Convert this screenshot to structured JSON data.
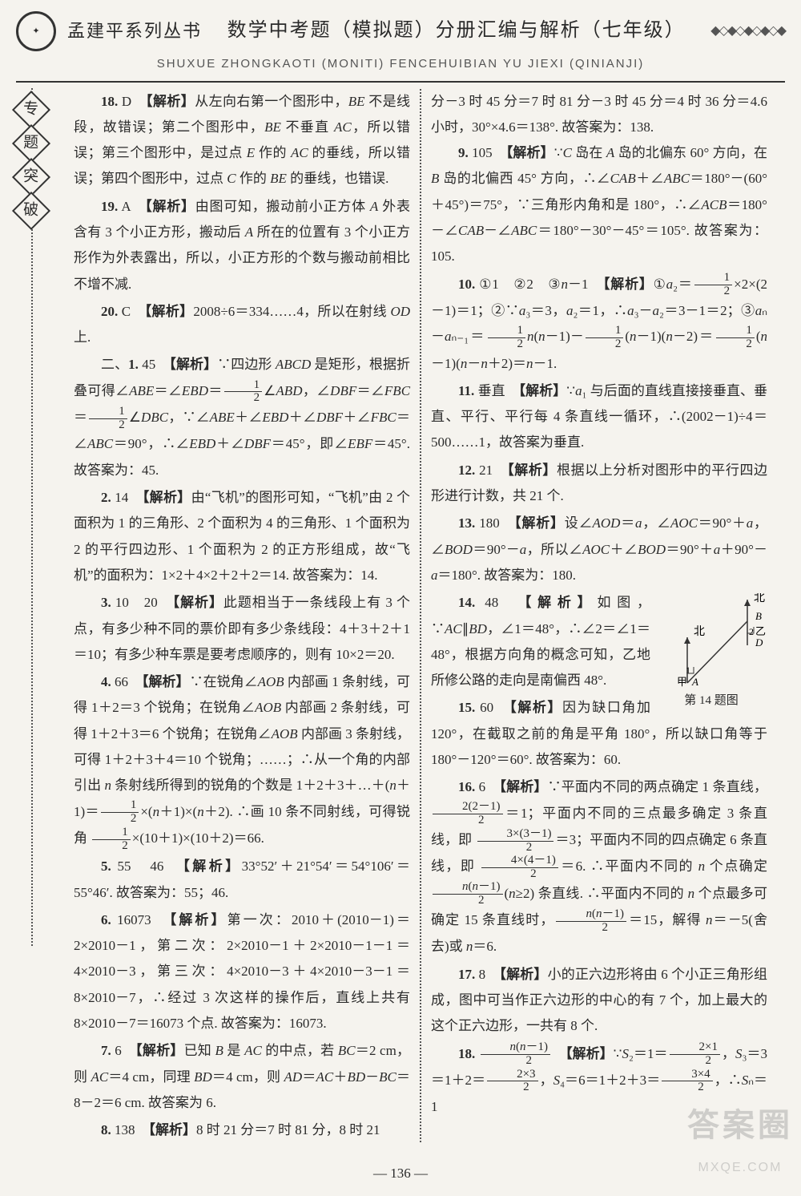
{
  "header": {
    "series": "孟建平系列丛书",
    "title": "数学中考题（模拟题）分册汇编与解析（七年级）",
    "subtitle": "SHUXUE ZHONGKAOTI (MONITI) FENCEHUIBIAN YU JIEXI (QINIANJI)",
    "decor_right": "◆◇◆◇◆◇◆◇◆"
  },
  "sidebar": [
    "专",
    "题",
    "突",
    "破"
  ],
  "page_number": "— 136 —",
  "watermark": {
    "top": "答案圈",
    "bottom": "MXQE.COM"
  },
  "left_column": [
    {
      "t": "para",
      "html": "<b>18.</b> D　<b>【解析】</b>从左向右第一个图形中，<i>BE</i> 不是线段，故错误；第二个图形中，<i>BE</i> 不垂直 <i>AC</i>，所以错误；第三个图形中，是过点 <i>E</i> 作的 <i>AC</i> 的垂线，所以错误；第四个图形中，过点 <i>C</i> 作的 <i>BE</i> 的垂线，也错误."
    },
    {
      "t": "para",
      "html": "<b>19.</b> A　<b>【解析】</b>由图可知，搬动前小正方体 <i>A</i> 外表含有 3 个小正方形，搬动后 <i>A</i> 所在的位置有 3 个小正方形作为外表露出，所以，小正方形的个数与搬动前相比不增不减."
    },
    {
      "t": "para",
      "html": "<b>20.</b> C　<b>【解析】</b>2008÷6＝334……4，所以在射线 <i>OD</i> 上."
    },
    {
      "t": "para",
      "html": "二、<b>1.</b> 45　<b>【解析】</b>∵四边形 <i>ABCD</i> 是矩形，根据折叠可得∠<i>ABE</i>＝∠<i>EBD</i>＝<span class='frac'><span class='num'>1</span><span class='den'>2</span></span>∠<i>ABD</i>，∠<i>DBF</i>＝∠<i>FBC</i>＝<span class='frac'><span class='num'>1</span><span class='den'>2</span></span>∠<i>DBC</i>，∵∠<i>ABE</i>＋∠<i>EBD</i>＋∠<i>DBF</i>＋∠<i>FBC</i>＝∠<i>ABC</i>＝90°，∴∠<i>EBD</i>＋∠<i>DBF</i>＝45°，即∠<i>EBF</i>＝45°. 故答案为：45."
    },
    {
      "t": "para",
      "html": "<b>2.</b> 14　<b>【解析】</b>由“飞机”的图形可知，“飞机”由 2 个面积为 1 的三角形、2 个面积为 4 的三角形、1 个面积为 2 的平行四边形、1 个面积为 2 的正方形组成，故“飞机”的面积为：1×2＋4×2＋2＋2＝14. 故答案为：14."
    },
    {
      "t": "para",
      "html": "<b>3.</b> 10　20　<b>【解析】</b>此题相当于一条线段上有 3 个点，有多少种不同的票价即有多少条线段：4＋3＋2＋1＝10；有多少种车票是要考虑顺序的，则有 10×2＝20."
    },
    {
      "t": "para",
      "html": "<b>4.</b> 66　<b>【解析】</b>∵在锐角∠<i>AOB</i> 内部画 1 条射线，可得 1＋2＝3 个锐角；在锐角∠<i>AOB</i> 内部画 2 条射线，可得 1＋2＋3＝6 个锐角；在锐角∠<i>AOB</i> 内部画 3 条射线，可得 1＋2＋3＋4＝10 个锐角；……；∴从一个角的内部引出 <i>n</i> 条射线所得到的锐角的个数是 1＋2＋3＋…＋(<i>n</i>＋1)＝<span class='frac'><span class='num'>1</span><span class='den'>2</span></span>×(<i>n</i>＋1)×(<i>n</i>＋2). ∴画 10 条不同射线，可得锐角 <span class='frac'><span class='num'>1</span><span class='den'>2</span></span>×(10＋1)×(10＋2)＝66."
    },
    {
      "t": "para",
      "html": "<b>5.</b> 55　46　<b>【解析】</b>33°52′＋21°54′＝54°106′＝55°46′. 故答案为：55；46."
    },
    {
      "t": "para",
      "html": "<b>6.</b> 16073　<b>【解析】</b>第一次：2010＋(2010－1)＝2×2010－1，第二次：2×2010－1＋2×2010－1－1＝4×2010－3，第三次：4×2010－3＋4×2010－3－1＝8×2010－7，∴经过 3 次这样的操作后，直线上共有 8×2010－7＝16073 个点. 故答案为：16073."
    },
    {
      "t": "para",
      "html": "<b>7.</b> 6　<b>【解析】</b>已知 <i>B</i> 是 <i>AC</i> 的中点，若 <i>BC</i>＝2 cm，则 <i>AC</i>＝4 cm，同理 <i>BD</i>＝4 cm，则 <i>AD</i>＝<i>AC</i>＋<i>BD</i>－<i>BC</i>＝8－2＝6 cm. 故答案为 6."
    },
    {
      "t": "para",
      "html": "<b>8.</b> 138　<b>【解析】</b>8 时 21 分＝7 时 81 分，8 时 21"
    }
  ],
  "right_column": [
    {
      "t": "plain",
      "html": "分－3 时 45 分＝7 时 81 分－3 时 45 分＝4 时 36 分＝4.6 小时，30°×4.6＝138°. 故答案为：138."
    },
    {
      "t": "para",
      "html": "<b>9.</b> 105　<b>【解析】</b>∵<i>C</i> 岛在 <i>A</i> 岛的北偏东 60° 方向，在 <i>B</i> 岛的北偏西 45° 方向，∴∠<i>CAB</i>＋∠<i>ABC</i>＝180°－(60°＋45°)＝75°，∵三角形内角和是 180°，∴∠<i>ACB</i>＝180°－∠<i>CAB</i>－∠<i>ABC</i>＝180°－30°－45°＝105°. 故答案为：105."
    },
    {
      "t": "para",
      "html": "<b>10.</b> ①1　②2　③<i>n</i>－1　<b>【解析】</b>①<i>a</i>₂＝<span class='frac'><span class='num'>1</span><span class='den'>2</span></span>×2×(2－1)＝1；②∵<i>a</i>₃＝3，<i>a</i>₂＝1，∴<i>a</i>₃－<i>a</i>₂＝3－1＝2；③<i>a</i>ₙ－<i>a</i>ₙ₋₁＝<span class='frac'><span class='num'>1</span><span class='den'>2</span></span><i>n</i>(<i>n</i>－1)－<span class='frac'><span class='num'>1</span><span class='den'>2</span></span>(<i>n</i>－1)(<i>n</i>－2)＝<span class='frac'><span class='num'>1</span><span class='den'>2</span></span>(<i>n</i>－1)(<i>n</i>－<i>n</i>＋2)＝<i>n</i>－1."
    },
    {
      "t": "para",
      "html": "<b>11.</b> 垂直　<b>【解析】</b>∵<i>a</i>₁ 与后面的直线直接接垂直、垂直、平行、平行每 4 条直线一循环，∴(2002－1)÷4＝500……1，故答案为垂直."
    },
    {
      "t": "para",
      "html": "<b>12.</b> 21　<b>【解析】</b>根据以上分析对图形中的平行四边形进行计数，共 21 个."
    },
    {
      "t": "para",
      "html": "<b>13.</b> 180　<b>【解析】</b>设∠<i>AOD</i>＝<i>a</i>，∠<i>AOC</i>＝90°＋<i>a</i>，∠<i>BOD</i>＝90°－<i>a</i>，所以∠<i>AOC</i>＋∠<i>BOD</i>＝90°＋<i>a</i>＋90°－<i>a</i>＝180°. 故答案为：180."
    },
    {
      "t": "fig14"
    },
    {
      "t": "para",
      "html": "<b>14.</b> 48　<b>【解析】</b>如图，∵<i>AC</i>∥<i>BD</i>，∠1＝48°，∴∠2＝∠1＝48°，根据方向角的概念可知，乙地所修公路的走向是南偏西 48°."
    },
    {
      "t": "para",
      "html": "<b>15.</b> 60　<b>【解析】</b>因为缺口角加 120°，在截取之前的角是平角 180°，所以缺口角等于 180°－120°＝60°. 故答案为：60."
    },
    {
      "t": "para",
      "html": "<b>16.</b> 6　<b>【解析】</b>∵平面内不同的两点确定 1 条直线，<span class='frac'><span class='num'>2(2－1)</span><span class='den'>2</span></span>＝1；平面内不同的三点最多确定 3 条直线，即 <span class='frac'><span class='num'>3×(3－1)</span><span class='den'>2</span></span>＝3；平面内不同的四点确定 6 条直线，即 <span class='frac'><span class='num'>4×(4－1)</span><span class='den'>2</span></span>＝6. ∴平面内不同的 <i>n</i> 个点确定 <span class='frac'><span class='num'><i>n</i>(<i>n</i>－1)</span><span class='den'>2</span></span>(<i>n</i>≥2) 条直线. ∴平面内不同的 <i>n</i> 个点最多可确定 15 条直线时，<span class='frac'><span class='num'><i>n</i>(<i>n</i>－1)</span><span class='den'>2</span></span>＝15，解得 <i>n</i>＝－5(舍去)或 <i>n</i>＝6."
    },
    {
      "t": "para",
      "html": "<b>17.</b> 8　<b>【解析】</b>小的正六边形将由 6 个小正三角形组成，图中可当作正六边形的中心的有 7 个，加上最大的这个正六边形，一共有 8 个."
    },
    {
      "t": "para",
      "html": "<b>18.</b> <span class='frac'><span class='num'><i>n</i>(<i>n</i>－1)</span><span class='den'>2</span></span>　<b>【解析】</b>∵<i>S</i>₂＝1＝<span class='frac'><span class='num'>2×1</span><span class='den'>2</span></span>，<i>S</i>₃＝3＝1＋2＝<span class='frac'><span class='num'>2×3</span><span class='den'>2</span></span>，<i>S</i>₄＝6＝1＋2＋3＝<span class='frac'><span class='num'>3×4</span><span class='den'>2</span></span>，∴<i>S</i>ₙ＝1"
    }
  ],
  "fig14": {
    "caption": "第 14 题图",
    "labels": {
      "north1": "北",
      "north2": "北",
      "A": "A",
      "B": "B",
      "jia": "甲",
      "yi": "乙",
      "one": "1",
      "two": "2",
      "D": "D"
    }
  }
}
